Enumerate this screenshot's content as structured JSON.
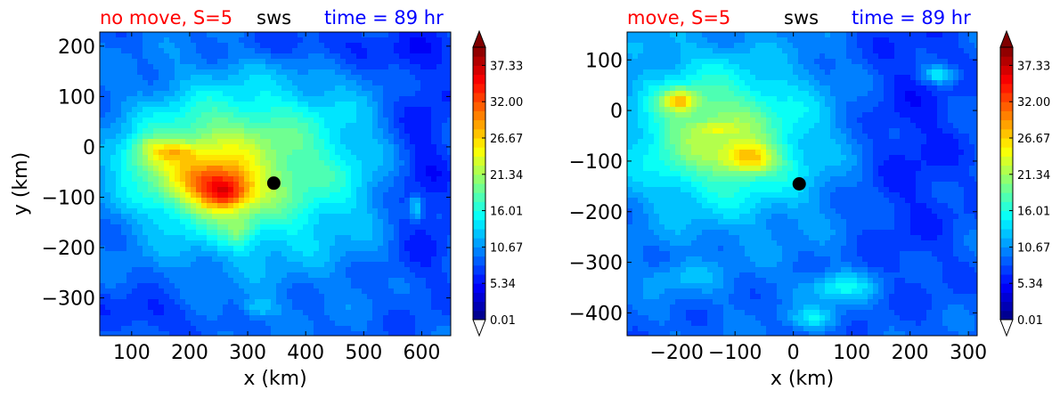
{
  "chart_data": [
    {
      "type": "heatmap",
      "title_parts": [
        {
          "text": "no move, S=5",
          "color": "#ff0000"
        },
        {
          "text": "sws",
          "color": "#000000"
        },
        {
          "text": "time = 89 hr",
          "color": "#0000ff"
        }
      ],
      "xlabel": "x (km)",
      "ylabel": "y (km)",
      "xlim": [
        45,
        650
      ],
      "ylim": [
        -375,
        228
      ],
      "xticks": [
        100,
        200,
        300,
        400,
        500,
        600
      ],
      "yticks": [
        200,
        100,
        0,
        -100,
        -200,
        -300
      ],
      "background_value": 9,
      "features": [
        {
          "cx": 380,
          "cy": -40,
          "sx": 170,
          "sy": 170,
          "v": 7
        },
        {
          "cx": 250,
          "cy": -40,
          "sx": 140,
          "sy": 150,
          "v": 8
        },
        {
          "cx": 180,
          "cy": -40,
          "sx": 100,
          "sy": 90,
          "v": 6
        },
        {
          "cx": 120,
          "cy": -20,
          "sx": 50,
          "sy": 35,
          "v": 4
        },
        {
          "cx": 250,
          "cy": -80,
          "sx": 60,
          "sy": 45,
          "v": 10
        },
        {
          "cx": 265,
          "cy": -95,
          "sx": 35,
          "sy": 30,
          "v": 6
        },
        {
          "cx": 170,
          "cy": -10,
          "sx": 40,
          "sy": 16,
          "v": 5
        },
        {
          "cx": 130,
          "cy": 5,
          "sx": 25,
          "sy": 15,
          "v": 3
        },
        {
          "cx": 285,
          "cy": -170,
          "sx": 25,
          "sy": 30,
          "v": 4
        },
        {
          "cx": 450,
          "cy": 200,
          "sx": 160,
          "sy": 40,
          "v": -3
        },
        {
          "cx": 600,
          "cy": -30,
          "sx": 60,
          "sy": 250,
          "v": -4
        },
        {
          "cx": 590,
          "cy": -120,
          "sx": 10,
          "sy": 25,
          "v": 6
        },
        {
          "cx": 120,
          "cy": -330,
          "sx": 80,
          "sy": 40,
          "v": -3
        },
        {
          "cx": 320,
          "cy": -320,
          "sx": 30,
          "sy": 20,
          "v": 4
        }
      ],
      "markers": [
        {
          "x": 345,
          "y": -72
        }
      ],
      "colorbar": {
        "ticks": [
          0.01,
          5.34,
          10.67,
          16.01,
          21.34,
          26.67,
          32.0,
          37.33
        ],
        "range": [
          0.01,
          40.0
        ],
        "extend": "both"
      }
    },
    {
      "type": "heatmap",
      "title_parts": [
        {
          "text": "move, S=5",
          "color": "#ff0000"
        },
        {
          "text": "sws",
          "color": "#000000"
        },
        {
          "text": "time = 89 hr",
          "color": "#0000ff"
        }
      ],
      "xlabel": "x (km)",
      "ylabel": "",
      "xlim": [
        -285,
        315
      ],
      "ylim": [
        -445,
        155
      ],
      "xticks": [
        -200,
        -100,
        0,
        100,
        200,
        300
      ],
      "yticks": [
        100,
        0,
        -100,
        -200,
        -300,
        -400
      ],
      "background_value": 9,
      "features": [
        {
          "cx": -100,
          "cy": -60,
          "sx": 180,
          "sy": 170,
          "v": 7
        },
        {
          "cx": -150,
          "cy": -40,
          "sx": 120,
          "sy": 110,
          "v": 6
        },
        {
          "cx": -195,
          "cy": 20,
          "sx": 30,
          "sy": 22,
          "v": 11
        },
        {
          "cx": -75,
          "cy": -95,
          "sx": 45,
          "sy": 30,
          "v": 10
        },
        {
          "cx": -130,
          "cy": -35,
          "sx": 30,
          "sy": 10,
          "v": 4
        },
        {
          "cx": 250,
          "cy": 70,
          "sx": 30,
          "sy": 18,
          "v": 7
        },
        {
          "cx": 200,
          "cy": -50,
          "sx": 100,
          "sy": 300,
          "v": -3
        },
        {
          "cx": 80,
          "cy": -350,
          "sx": 60,
          "sy": 30,
          "v": 6
        },
        {
          "cx": -200,
          "cy": -330,
          "sx": 60,
          "sy": 30,
          "v": 3
        },
        {
          "cx": 40,
          "cy": -410,
          "sx": 40,
          "sy": 20,
          "v": 5
        },
        {
          "cx": -240,
          "cy": 130,
          "sx": 60,
          "sy": 40,
          "v": 2
        }
      ],
      "markers": [
        {
          "x": 10,
          "y": -145
        }
      ],
      "colorbar": {
        "ticks": [
          0.01,
          5.34,
          10.67,
          16.01,
          21.34,
          26.67,
          32.0,
          37.33
        ],
        "range": [
          0.01,
          40.0
        ],
        "extend": "both"
      }
    }
  ]
}
